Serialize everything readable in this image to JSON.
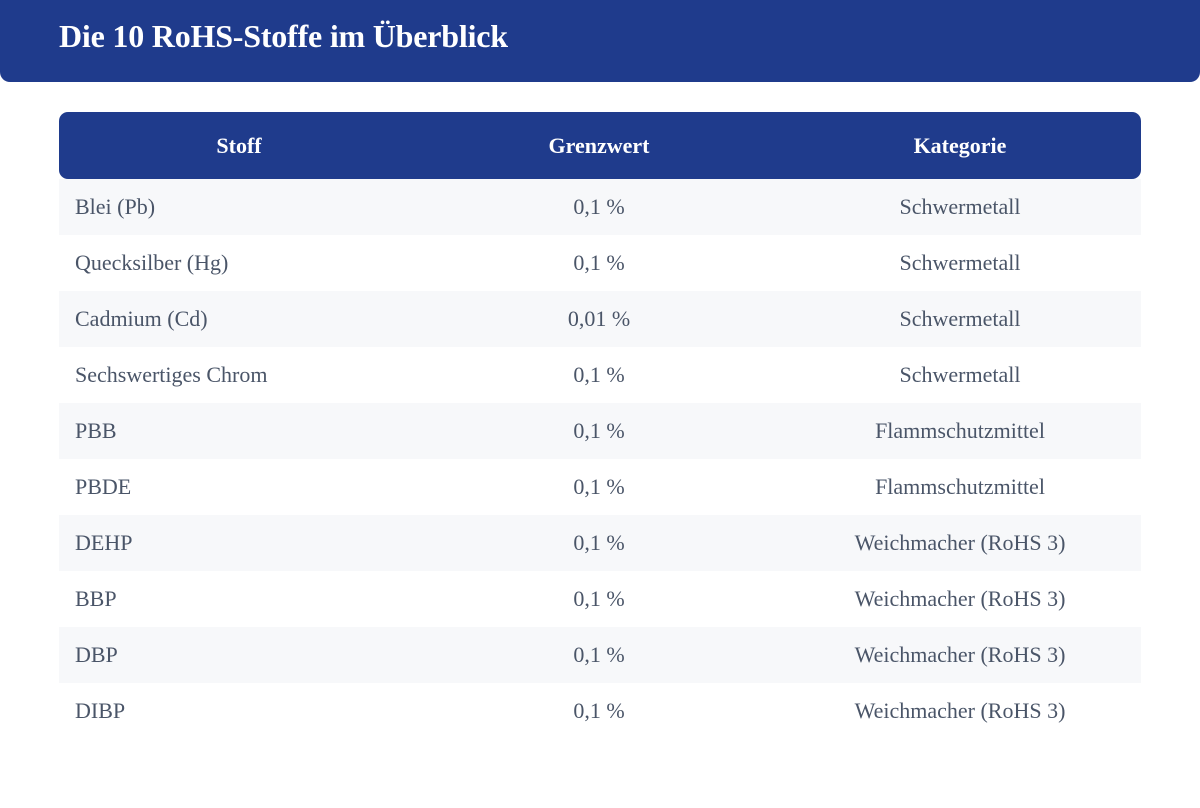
{
  "header": {
    "title": "Die 10 RoHS-Stoffe im Überblick"
  },
  "table": {
    "columns": [
      "Stoff",
      "Grenzwert",
      "Kategorie"
    ],
    "rows": [
      [
        "Blei (Pb)",
        "0,1 %",
        "Schwermetall"
      ],
      [
        "Quecksilber (Hg)",
        "0,1 %",
        "Schwermetall"
      ],
      [
        "Cadmium (Cd)",
        "0,01 %",
        "Schwermetall"
      ],
      [
        "Sechswertiges Chrom",
        "0,1 %",
        "Schwermetall"
      ],
      [
        "PBB",
        "0,1 %",
        "Flammschutzmittel"
      ],
      [
        "PBDE",
        "0,1 %",
        "Flammschutzmittel"
      ],
      [
        "DEHP",
        "0,1 %",
        "Weichmacher (RoHS 3)"
      ],
      [
        "BBP",
        "0,1 %",
        "Weichmacher (RoHS 3)"
      ],
      [
        "DBP",
        "0,1 %",
        "Weichmacher (RoHS 3)"
      ],
      [
        "DIBP",
        "0,1 %",
        "Weichmacher (RoHS 3)"
      ]
    ]
  },
  "colors": {
    "accent": "#1f3b8c",
    "row_alt": "#f7f8fa",
    "text": "#4a5568"
  }
}
